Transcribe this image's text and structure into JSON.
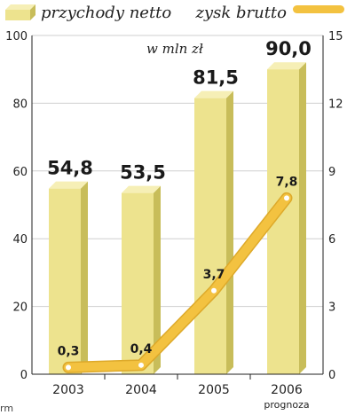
{
  "chart_data": {
    "type": "bar+line",
    "categories": [
      "2003",
      "2004",
      "2005",
      "2006"
    ],
    "category_notes": [
      "",
      "",
      "",
      "prognoza"
    ],
    "unit_label": "w mln zł",
    "series": [
      {
        "name": "przychody netto",
        "type": "bar",
        "axis": "left",
        "values": [
          54.8,
          53.5,
          81.5,
          90.0
        ],
        "labels": [
          "54,8",
          "53,5",
          "81,5",
          "90,0"
        ]
      },
      {
        "name": "zysk brutto",
        "type": "line",
        "axis": "right",
        "values": [
          0.3,
          0.4,
          3.7,
          7.8
        ],
        "labels": [
          "0,3",
          "0,4",
          "3,7",
          "7,8"
        ]
      }
    ],
    "y_left": {
      "min": 0,
      "max": 100,
      "ticks": [
        0,
        20,
        40,
        60,
        80,
        100
      ]
    },
    "y_right": {
      "min": 0,
      "max": 15,
      "ticks": [
        0,
        3,
        6,
        9,
        12,
        15
      ]
    },
    "grid": true,
    "legend_position": "top",
    "source_text": "rm",
    "colors": {
      "bar_front": "#ede38e",
      "bar_side": "#c8bd5a",
      "bar_top": "#f6efb6",
      "line": "#f3c240",
      "line_outline": "#dda92a",
      "marker": "#ffffff",
      "grid": "#cfcfcf",
      "axis": "#222222"
    }
  }
}
